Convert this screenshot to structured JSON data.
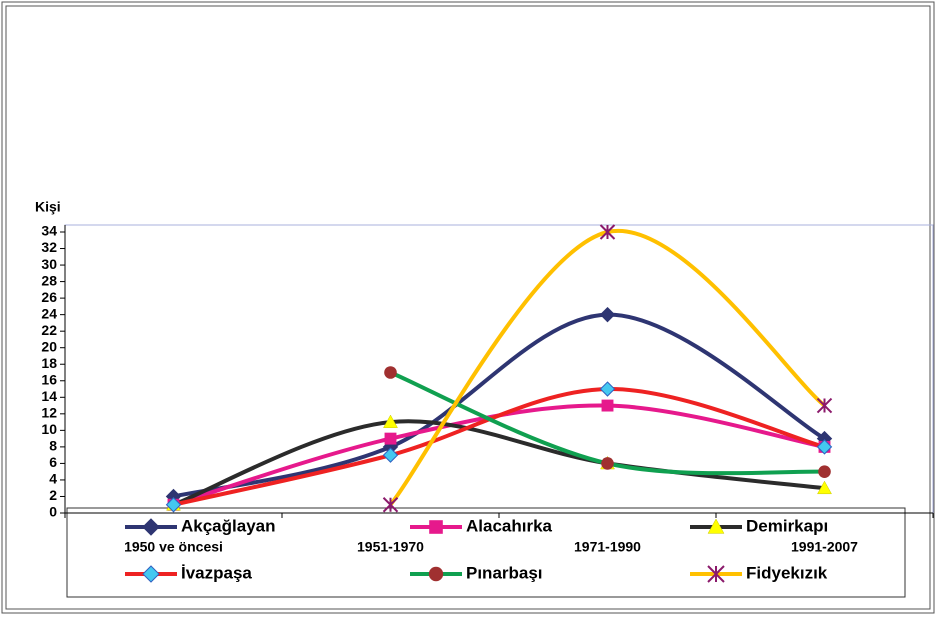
{
  "chart_data": {
    "type": "line",
    "y_label": "Kişi",
    "categories": [
      "1950 ve öncesi",
      "1951-1970",
      "1971-1990",
      "1991-2007"
    ],
    "ylim": [
      0,
      34
    ],
    "yticks": [
      0,
      2,
      4,
      6,
      8,
      10,
      12,
      14,
      16,
      18,
      20,
      22,
      24,
      26,
      28,
      30,
      32,
      34
    ],
    "smooth": true,
    "series": [
      {
        "name": "Akçağlayan",
        "color": "#2e3572",
        "marker": "diamond",
        "marker_color": "#2e3572",
        "values": [
          2,
          8,
          24,
          9
        ]
      },
      {
        "name": "Alacahırka",
        "color": "#e6198c",
        "marker": "square",
        "marker_color": "#e6198c",
        "values": [
          1,
          9,
          13,
          8
        ]
      },
      {
        "name": "Demirkapı",
        "color": "#2b2b2b",
        "marker": "triangle",
        "marker_color": "#ffff00",
        "values": [
          1,
          11,
          6,
          3
        ]
      },
      {
        "name": "İvazpaşa",
        "color": "#ee2222",
        "marker": "diamond",
        "marker_color": "#44c8f0",
        "values": [
          1,
          7,
          15,
          8
        ]
      },
      {
        "name": "Pınarbaşı",
        "color": "#10a050",
        "marker": "circle",
        "marker_color": "#a03030",
        "values": [
          null,
          17,
          6,
          5
        ]
      },
      {
        "name": "Fidyekızık",
        "color": "#ffc000",
        "marker": "star",
        "marker_color": "#8b1a6b",
        "values": [
          null,
          1,
          34,
          13
        ]
      }
    ]
  }
}
